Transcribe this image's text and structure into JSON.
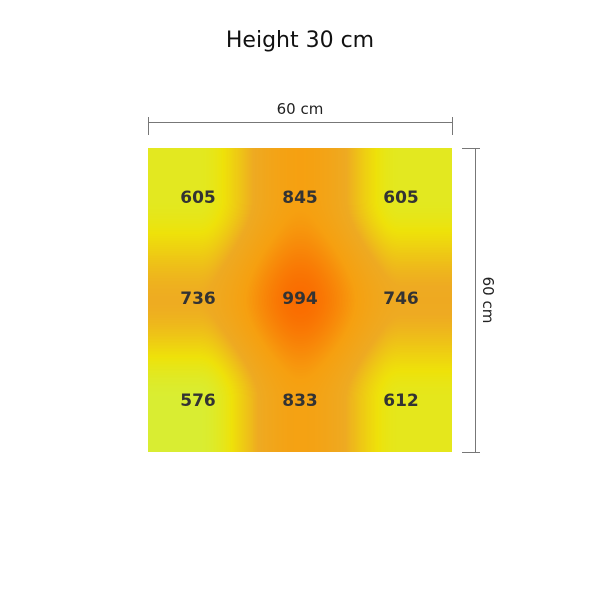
{
  "title": "Height 30 cm",
  "width_label": "60 cm",
  "depth_label": "60 cm",
  "chart_data": {
    "type": "heatmap",
    "title": "Height 30 cm",
    "xlabel": "60 cm",
    "ylabel": "60 cm",
    "rows": [
      [
        605,
        845,
        605
      ],
      [
        736,
        994,
        746
      ],
      [
        576,
        833,
        612
      ]
    ],
    "labels": [
      [
        "605",
        "845",
        "605"
      ],
      [
        "736",
        "994",
        "746"
      ],
      [
        "576",
        "833",
        "612"
      ]
    ],
    "colorscale": [
      {
        "value": 560,
        "color": "#d4f03c"
      },
      {
        "value": 640,
        "color": "#eee20a"
      },
      {
        "value": 740,
        "color": "#eeaa22"
      },
      {
        "value": 850,
        "color": "#f6a010"
      },
      {
        "value": 1000,
        "color": "#fa6a00"
      }
    ],
    "grid": false
  }
}
